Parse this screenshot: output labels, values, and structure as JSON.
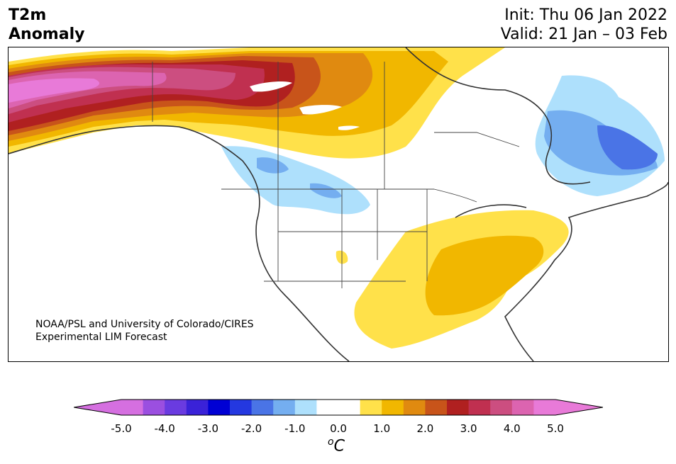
{
  "title": {
    "left_line1": "T2m",
    "left_line2": "Anomaly",
    "init": "Init: Thu 06 Jan 2022",
    "valid": "Valid: 21 Jan – 03 Feb"
  },
  "credit": {
    "line1": "NOAA/PSL and University of Colorado/CIRES",
    "line2": "Experimental LIM Forecast"
  },
  "colorbar": {
    "unit_super": "o",
    "unit": "C",
    "ticks": [
      "-5.0",
      "-4.0",
      "-3.0",
      "-2.0",
      "-1.0",
      "0.0",
      "1.0",
      "2.0",
      "3.0",
      "4.0",
      "5.0"
    ],
    "colors": [
      "#d56fe0",
      "#9b4fe0",
      "#6a3be0",
      "#3a22d8",
      "#0000d4",
      "#2438e0",
      "#4a74e6",
      "#74aef0",
      "#aee0fc",
      "#ffffff",
      "#ffffff",
      "#ffe14a",
      "#f1b700",
      "#e08a10",
      "#c8541a",
      "#b02020",
      "#c03050",
      "#cc4e80",
      "#dc64b0",
      "#e87ad8"
    ],
    "under_color": "#d56fe0",
    "over_color": "#e87ad8"
  }
}
